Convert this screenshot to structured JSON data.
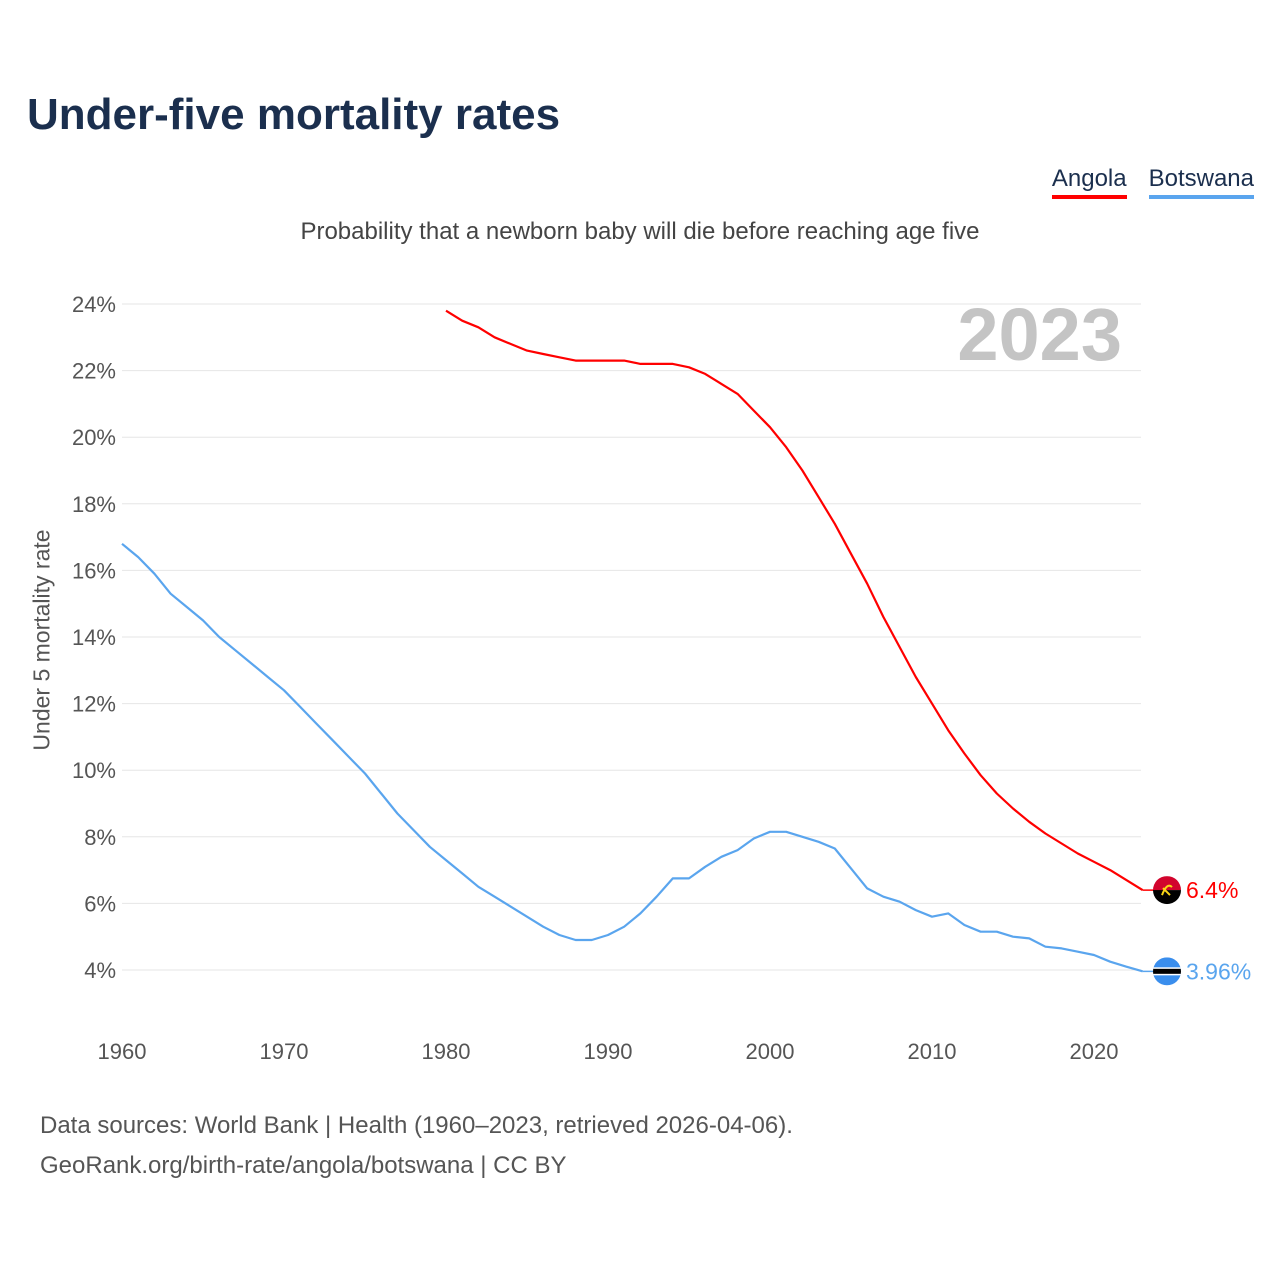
{
  "title": "Under-five mortality rates",
  "subtitle": "Probability that a newborn baby will die before reaching age five",
  "footer": {
    "line1": "Data sources: World Bank | Health (1960–2023, retrieved 2026-04-06).",
    "line2": "GeoRank.org/birth-rate/angola/botswana | CC BY"
  },
  "chart_data": {
    "type": "line",
    "title": "Under-five mortality rates",
    "subtitle": "Probability that a newborn baby will die before reaching age five",
    "xlabel": "",
    "ylabel": "Under 5 mortality rate",
    "year_watermark": "2023",
    "xlim": [
      1960,
      2023
    ],
    "ylim": [
      4,
      24
    ],
    "xticks": [
      1960,
      1970,
      1980,
      1990,
      2000,
      2010,
      2020
    ],
    "yticks": [
      4,
      6,
      8,
      10,
      12,
      14,
      16,
      18,
      20,
      22,
      24
    ],
    "ytick_suffix": "%",
    "grid": true,
    "legend_position": "top-right",
    "series": [
      {
        "name": "Angola",
        "color": "#ff0000",
        "end_label": "6.4%",
        "flag": "angola-flag",
        "start_year": 1980,
        "values": [
          23.8,
          23.5,
          23.3,
          23.0,
          22.8,
          22.6,
          22.5,
          22.4,
          22.3,
          22.3,
          22.3,
          22.3,
          22.2,
          22.2,
          22.2,
          22.1,
          21.9,
          21.6,
          21.3,
          20.8,
          20.3,
          19.7,
          19.0,
          18.2,
          17.4,
          16.5,
          15.6,
          14.6,
          13.7,
          12.8,
          12.0,
          11.2,
          10.5,
          9.85,
          9.3,
          8.85,
          8.45,
          8.1,
          7.8,
          7.5,
          7.25,
          7.0,
          6.7,
          6.4
        ]
      },
      {
        "name": "Botswana",
        "color": "#5aa5ee",
        "end_label": "3.96%",
        "flag": "botswana-flag",
        "start_year": 1960,
        "values": [
          16.8,
          16.4,
          15.9,
          15.3,
          14.9,
          14.5,
          14.0,
          13.6,
          13.2,
          12.8,
          12.4,
          11.9,
          11.4,
          10.9,
          10.4,
          9.9,
          9.3,
          8.7,
          8.2,
          7.7,
          7.3,
          6.9,
          6.5,
          6.2,
          5.9,
          5.6,
          5.3,
          5.05,
          4.9,
          4.9,
          5.05,
          5.3,
          5.7,
          6.2,
          6.75,
          6.75,
          7.1,
          7.4,
          7.6,
          7.95,
          8.15,
          8.15,
          8.0,
          7.85,
          7.65,
          7.05,
          6.45,
          6.2,
          6.05,
          5.8,
          5.6,
          5.7,
          5.35,
          5.15,
          5.15,
          5.0,
          4.95,
          4.7,
          4.65,
          4.55,
          4.45,
          4.25,
          4.1,
          3.96
        ]
      }
    ]
  }
}
